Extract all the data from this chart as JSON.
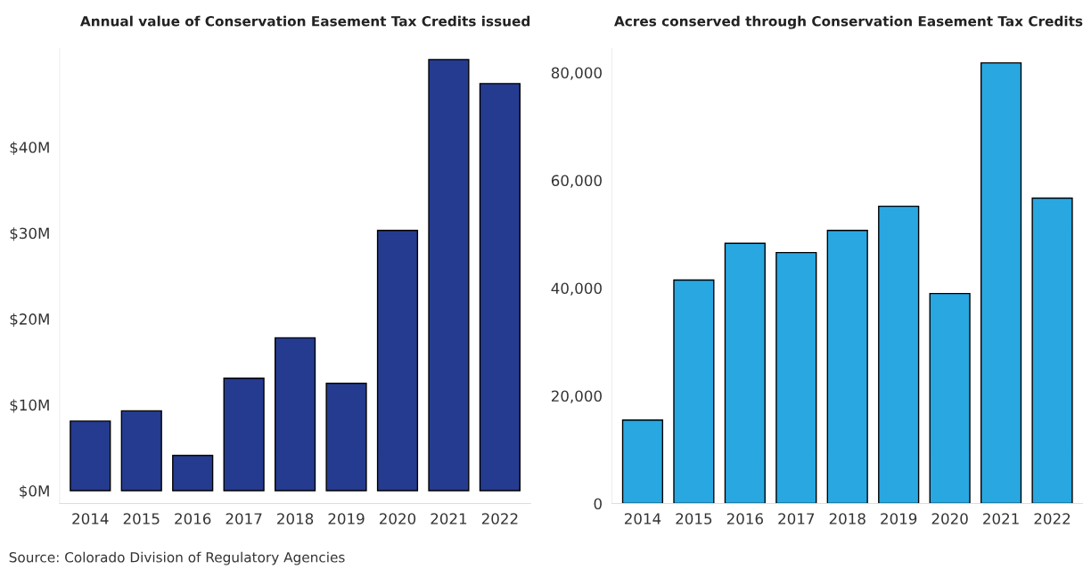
{
  "chart_data": [
    {
      "type": "bar",
      "title": "Annual value of Conservation Easement Tax Credits issued",
      "categories": [
        "2014",
        "2015",
        "2016",
        "2017",
        "2018",
        "2019",
        "2020",
        "2021",
        "2022"
      ],
      "series": [
        {
          "color": "#253b8f",
          "values": [
            8.1,
            9.3,
            4.1,
            13.1,
            17.8,
            12.5,
            30.3,
            50.2,
            47.4
          ]
        }
      ],
      "ylim": [
        -1.5,
        51.5
      ],
      "yticks": [
        {
          "value": 0,
          "label": "$0M"
        },
        {
          "value": 10,
          "label": "$10M"
        },
        {
          "value": 20,
          "label": "$20M"
        },
        {
          "value": 30,
          "label": "$30M"
        },
        {
          "value": 40,
          "label": "$40M"
        }
      ],
      "grid": false,
      "legend": false,
      "annotations": [
        "Source: Colorado Division of Regulatory Agencies"
      ]
    },
    {
      "type": "bar",
      "title": "Acres conserved through Conservation Easement Tax Credits",
      "categories": [
        "2014",
        "2015",
        "2016",
        "2017",
        "2018",
        "2019",
        "2020",
        "2021",
        "2022"
      ],
      "series": [
        {
          "color": "#29a7e1",
          "values": [
            15500,
            41500,
            48300,
            46600,
            50700,
            55200,
            39000,
            81800,
            56700
          ]
        }
      ],
      "ylim": [
        0,
        84500
      ],
      "yticks": [
        0,
        {
          "value": 20000,
          "label": "20,000"
        },
        {
          "value": 40000,
          "label": "40,000"
        },
        {
          "value": 60000,
          "label": "60,000"
        },
        {
          "value": 80000,
          "label": "80,000"
        }
      ],
      "grid": false,
      "legend": false
    }
  ]
}
